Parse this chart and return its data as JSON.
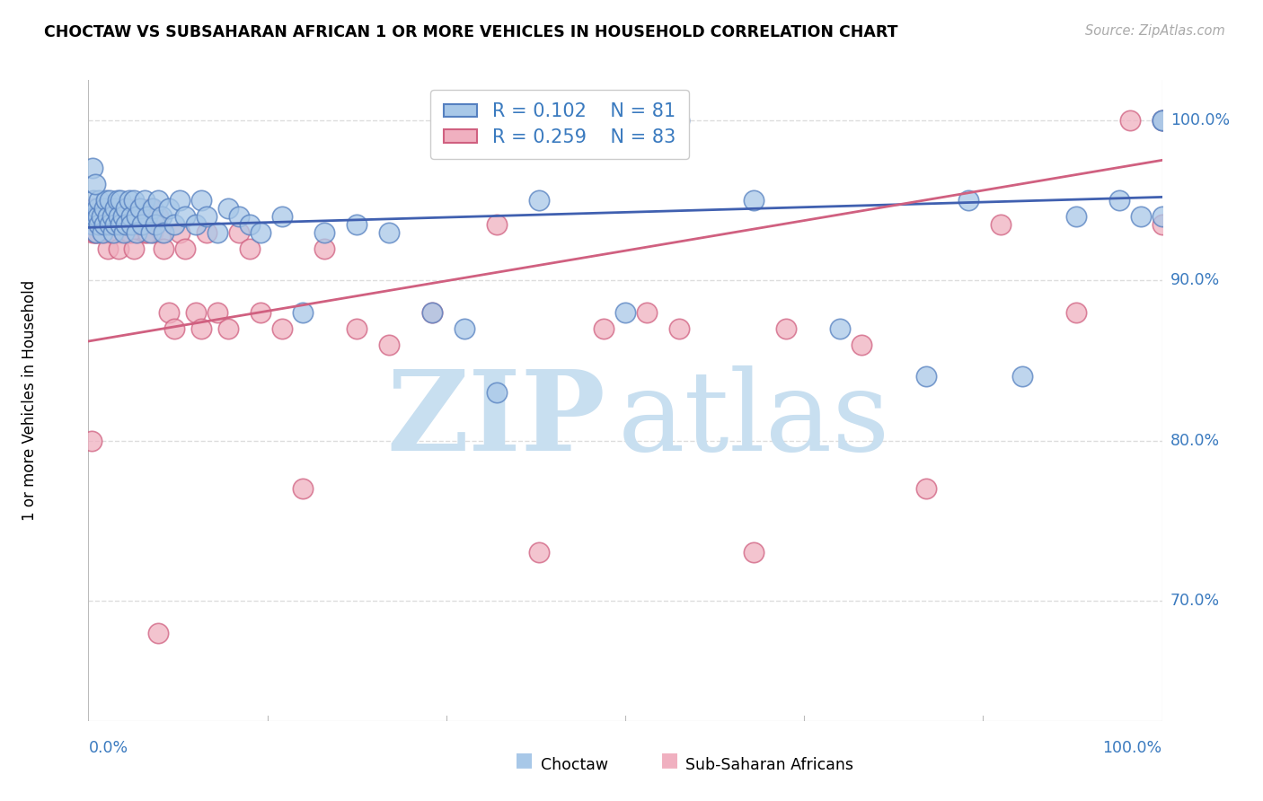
{
  "title": "CHOCTAW VS SUBSAHARAN AFRICAN 1 OR MORE VEHICLES IN HOUSEHOLD CORRELATION CHART",
  "source": "Source: ZipAtlas.com",
  "ylabel": "1 or more Vehicles in Household",
  "legend_label1": "Choctaw",
  "legend_label2": "Sub-Saharan Africans",
  "r1": 0.102,
  "n1": 81,
  "r2": 0.259,
  "n2": 83,
  "color_blue_face": "#a8c8e8",
  "color_blue_edge": "#5580c0",
  "color_blue_line": "#4060b0",
  "color_pink_face": "#f0b0c0",
  "color_pink_edge": "#d06080",
  "color_pink_line": "#d06080",
  "ytick_labels": [
    "100.0%",
    "90.0%",
    "80.0%",
    "70.0%"
  ],
  "ytick_values": [
    1.0,
    0.9,
    0.8,
    0.7
  ],
  "xmin": 0.0,
  "xmax": 1.0,
  "ymin": 0.625,
  "ymax": 1.025,
  "blue_trend_y0": 0.933,
  "blue_trend_y1": 0.952,
  "pink_trend_y0": 0.862,
  "pink_trend_y1": 0.975,
  "watermark_zip": "ZIP",
  "watermark_atlas": "atlas",
  "watermark_color": "#c8dff0",
  "background_color": "#ffffff",
  "grid_color": "#dddddd",
  "choctaw_x": [
    0.002,
    0.004,
    0.005,
    0.006,
    0.007,
    0.008,
    0.009,
    0.01,
    0.01,
    0.012,
    0.013,
    0.015,
    0.015,
    0.016,
    0.018,
    0.02,
    0.02,
    0.022,
    0.023,
    0.025,
    0.025,
    0.027,
    0.028,
    0.03,
    0.03,
    0.032,
    0.033,
    0.035,
    0.035,
    0.038,
    0.04,
    0.04,
    0.042,
    0.045,
    0.045,
    0.048,
    0.05,
    0.052,
    0.055,
    0.058,
    0.06,
    0.062,
    0.065,
    0.068,
    0.07,
    0.075,
    0.08,
    0.085,
    0.09,
    0.1,
    0.105,
    0.11,
    0.12,
    0.13,
    0.14,
    0.15,
    0.16,
    0.18,
    0.2,
    0.22,
    0.25,
    0.28,
    0.32,
    0.35,
    0.38,
    0.42,
    0.5,
    0.55,
    0.62,
    0.7,
    0.78,
    0.82,
    0.87,
    0.92,
    0.96,
    0.98,
    1.0,
    1.0,
    1.0,
    0.004,
    0.006
  ],
  "choctaw_y": [
    0.94,
    0.935,
    0.95,
    0.94,
    0.93,
    0.945,
    0.94,
    0.935,
    0.95,
    0.94,
    0.93,
    0.945,
    0.935,
    0.95,
    0.94,
    0.935,
    0.95,
    0.94,
    0.93,
    0.945,
    0.935,
    0.95,
    0.94,
    0.935,
    0.95,
    0.94,
    0.93,
    0.945,
    0.935,
    0.95,
    0.94,
    0.935,
    0.95,
    0.94,
    0.93,
    0.945,
    0.935,
    0.95,
    0.94,
    0.93,
    0.945,
    0.935,
    0.95,
    0.94,
    0.93,
    0.945,
    0.935,
    0.95,
    0.94,
    0.935,
    0.95,
    0.94,
    0.93,
    0.945,
    0.94,
    0.935,
    0.93,
    0.94,
    0.88,
    0.93,
    0.935,
    0.93,
    0.88,
    0.87,
    0.83,
    0.95,
    0.88,
    1.0,
    0.95,
    0.87,
    0.84,
    0.95,
    0.84,
    0.94,
    0.95,
    0.94,
    1.0,
    1.0,
    0.94,
    0.97,
    0.96
  ],
  "subsaharan_x": [
    0.002,
    0.004,
    0.005,
    0.006,
    0.008,
    0.01,
    0.01,
    0.012,
    0.014,
    0.015,
    0.015,
    0.018,
    0.02,
    0.02,
    0.022,
    0.025,
    0.025,
    0.028,
    0.03,
    0.03,
    0.032,
    0.035,
    0.035,
    0.038,
    0.04,
    0.04,
    0.042,
    0.045,
    0.045,
    0.048,
    0.05,
    0.052,
    0.055,
    0.058,
    0.06,
    0.062,
    0.065,
    0.068,
    0.07,
    0.075,
    0.08,
    0.085,
    0.09,
    0.1,
    0.105,
    0.11,
    0.12,
    0.13,
    0.14,
    0.15,
    0.16,
    0.18,
    0.2,
    0.22,
    0.25,
    0.28,
    0.32,
    0.38,
    0.42,
    0.48,
    0.52,
    0.55,
    0.62,
    0.65,
    0.72,
    0.78,
    0.85,
    0.92,
    0.97,
    1.0,
    1.0,
    0.003,
    0.006,
    0.009,
    0.018,
    0.022,
    0.028,
    0.032,
    0.038,
    0.042,
    0.048,
    0.055,
    0.065
  ],
  "subsaharan_y": [
    0.935,
    0.93,
    0.945,
    0.93,
    0.935,
    0.94,
    0.93,
    0.935,
    0.93,
    0.945,
    0.93,
    0.935,
    0.94,
    0.93,
    0.935,
    0.945,
    0.93,
    0.935,
    0.94,
    0.93,
    0.935,
    0.945,
    0.93,
    0.935,
    0.94,
    0.93,
    0.935,
    0.945,
    0.93,
    0.935,
    0.94,
    0.93,
    0.935,
    0.945,
    0.93,
    0.935,
    0.94,
    0.93,
    0.92,
    0.88,
    0.87,
    0.93,
    0.92,
    0.88,
    0.87,
    0.93,
    0.88,
    0.87,
    0.93,
    0.92,
    0.88,
    0.87,
    0.77,
    0.92,
    0.87,
    0.86,
    0.88,
    0.935,
    0.73,
    0.87,
    0.88,
    0.87,
    0.73,
    0.87,
    0.86,
    0.77,
    0.935,
    0.88,
    1.0,
    1.0,
    0.935,
    0.8,
    0.93,
    0.935,
    0.92,
    0.93,
    0.92,
    0.935,
    0.93,
    0.92,
    0.935,
    0.93,
    0.68
  ]
}
